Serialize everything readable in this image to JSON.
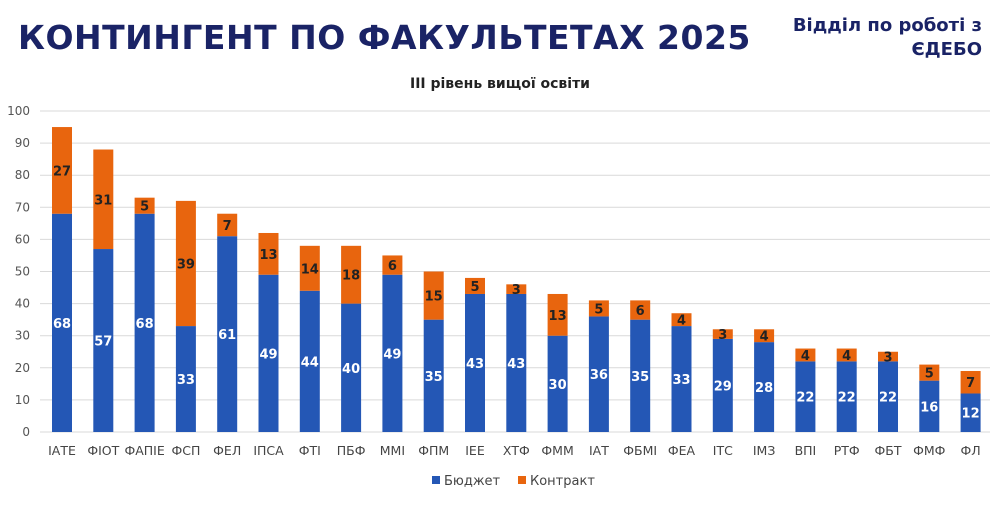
{
  "header": {
    "title": "КОНТИНГЕНТ ПО ФАКУЛЬТЕТАХ 2025",
    "department": "Відділ по роботі з ЄДЕБО"
  },
  "chart_data": {
    "type": "bar",
    "stacked": true,
    "title": "III рівень вищої освіти",
    "xlabel": "",
    "ylabel": "",
    "ylim": [
      0,
      100
    ],
    "yticks": [
      0,
      10,
      20,
      30,
      40,
      50,
      60,
      70,
      80,
      90,
      100
    ],
    "grid": true,
    "legend_position": "bottom",
    "categories": [
      "ІАТЕ",
      "ФІОТ",
      "ФАПІЕ",
      "ФСП",
      "ФЕЛ",
      "ІПСА",
      "ФТІ",
      "ПБФ",
      "ММІ",
      "ФПМ",
      "ІЕЕ",
      "ХТФ",
      "ФММ",
      "ІАТ",
      "ФБМІ",
      "ФЕА",
      "ІТС",
      "ІМЗ",
      "ВПІ",
      "РТФ",
      "ФБТ",
      "ФМФ",
      "ФЛ"
    ],
    "series": [
      {
        "name": "Бюджет",
        "color": "#2457b5",
        "values": [
          68,
          57,
          68,
          33,
          61,
          49,
          44,
          40,
          49,
          35,
          43,
          43,
          30,
          36,
          35,
          33,
          29,
          28,
          22,
          22,
          22,
          16,
          12
        ]
      },
      {
        "name": "Контракт",
        "color": "#e8650e",
        "values": [
          27,
          31,
          5,
          39,
          7,
          13,
          14,
          18,
          6,
          15,
          5,
          3,
          13,
          5,
          6,
          4,
          3,
          4,
          4,
          4,
          3,
          5,
          7
        ]
      }
    ]
  }
}
